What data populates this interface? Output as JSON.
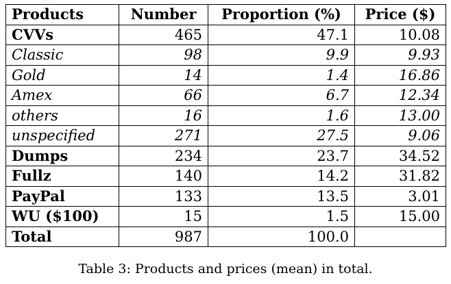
{
  "table": {
    "headers": [
      "Products",
      "Number",
      "Proportion (%)",
      "Price ($)"
    ],
    "rows": [
      {
        "product": "CVVs",
        "number": "465",
        "proportion": "47.1",
        "price": "10.08",
        "style": "bold"
      },
      {
        "product": "Classic",
        "number": "98",
        "proportion": "9.9",
        "price": "9.93",
        "style": "italic"
      },
      {
        "product": "Gold",
        "number": "14",
        "proportion": "1.4",
        "price": "16.86",
        "style": "italic"
      },
      {
        "product": "Amex",
        "number": "66",
        "proportion": "6.7",
        "price": "12.34",
        "style": "italic"
      },
      {
        "product": "others",
        "number": "16",
        "proportion": "1.6",
        "price": "13.00",
        "style": "italic"
      },
      {
        "product": "unspecified",
        "number": "271",
        "proportion": "27.5",
        "price": "9.06",
        "style": "italic"
      },
      {
        "product": "Dumps",
        "number": "234",
        "proportion": "23.7",
        "price": "34.52",
        "style": "bold"
      },
      {
        "product": "Fullz",
        "number": "140",
        "proportion": "14.2",
        "price": "31.82",
        "style": "bold"
      },
      {
        "product": "PayPal",
        "number": "133",
        "proportion": "13.5",
        "price": "3.01",
        "style": "bold"
      },
      {
        "product": "WU ($100)",
        "number": "15",
        "proportion": "1.5",
        "price": "15.00",
        "style": "bold"
      },
      {
        "product": "Total",
        "number": "987",
        "proportion": "100.0",
        "price": "",
        "style": "bold"
      }
    ]
  },
  "caption": "Table 3: Products and prices (mean) in total."
}
